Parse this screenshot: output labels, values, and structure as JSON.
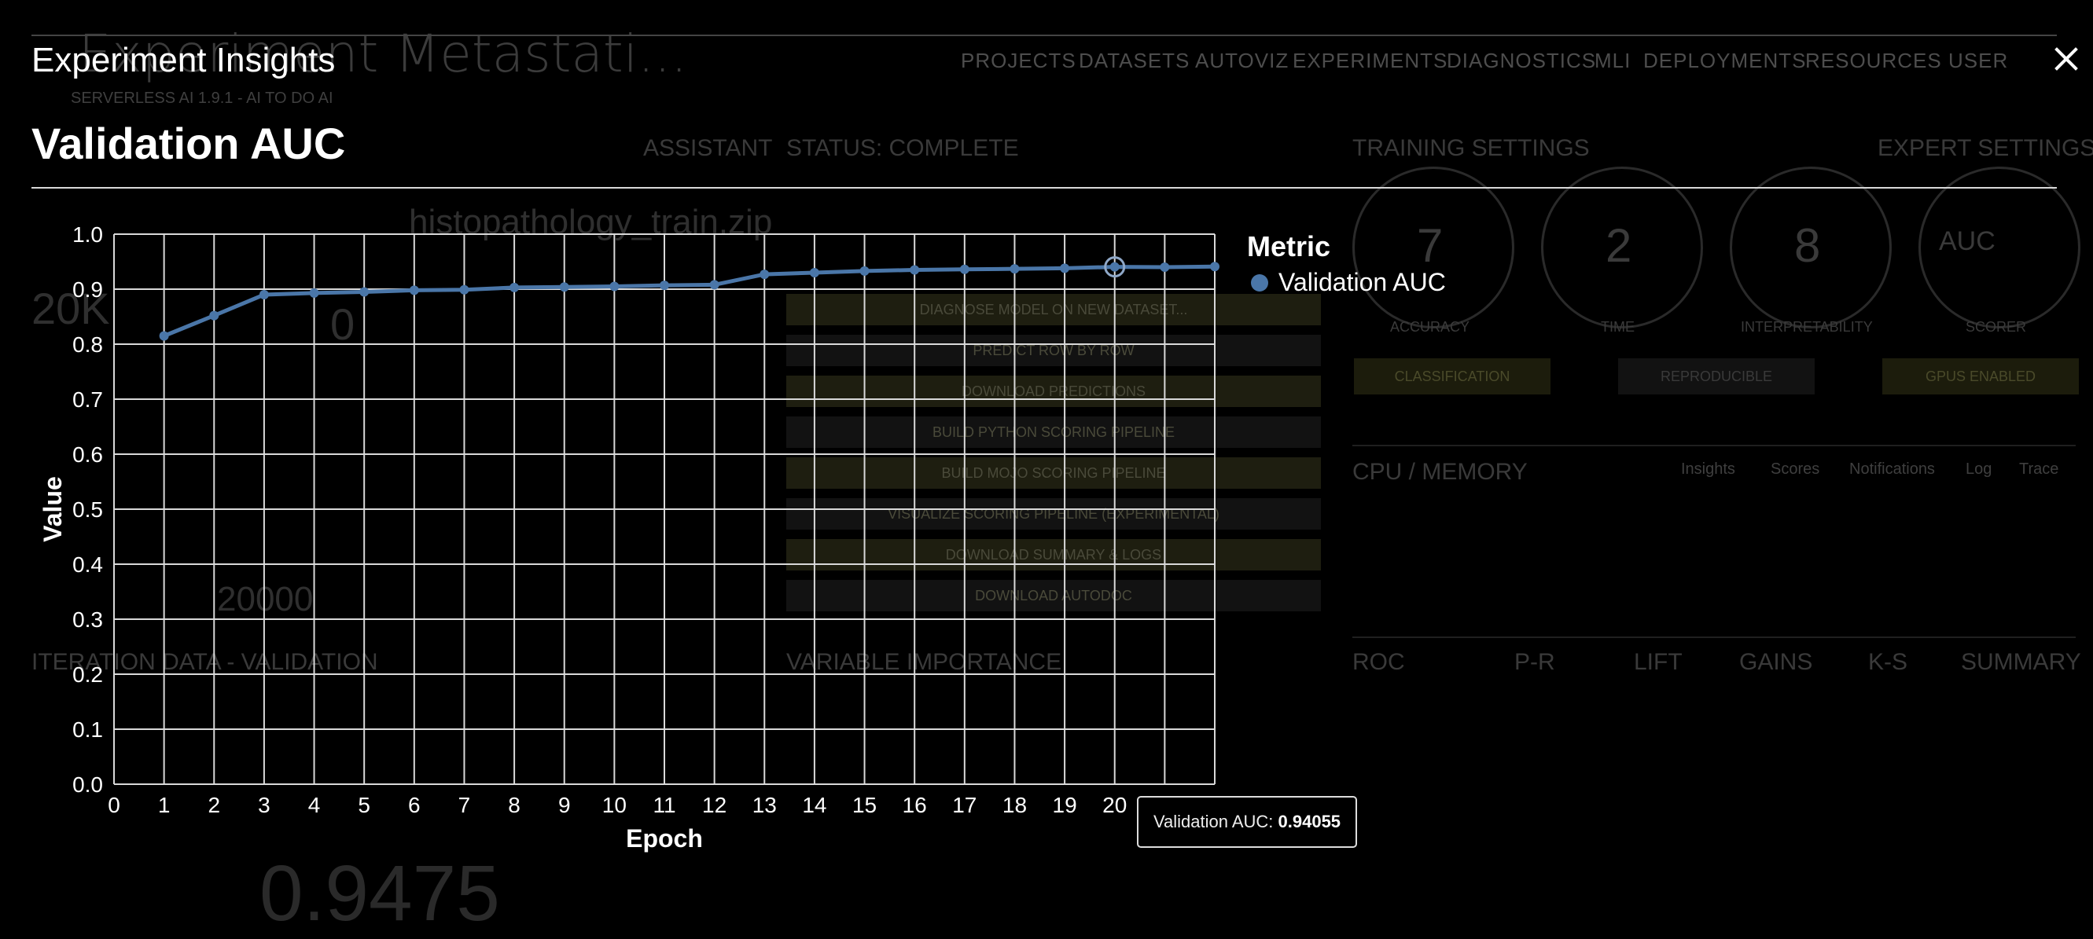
{
  "modal": {
    "title": "Experiment Insights",
    "chart_title": "Validation AUC",
    "tooltip": {
      "label": "Validation AUC:",
      "value": "0.94055"
    }
  },
  "background": {
    "app_title": "Experiment Metastati...",
    "nav": [
      "PROJECTS",
      "DATASETS",
      "AUTOVIZ",
      "EXPERIMENTS",
      "DIAGNOSTICS",
      "MLI",
      "DEPLOYMENTS",
      "RESOURCES",
      "USER"
    ],
    "assistant": "ASSISTANT",
    "status": "STATUS: COMPLETE",
    "training_settings": "TRAINING SETTINGS",
    "expert_settings": "EXPERT SETTINGS",
    "dials": [
      {
        "value": "7",
        "label": "ACCURACY"
      },
      {
        "value": "2",
        "label": "TIME"
      },
      {
        "value": "8",
        "label": "INTERPRETABILITY"
      },
      {
        "value": "AUC",
        "label": "SCORER"
      }
    ],
    "badges": [
      "CLASSIFICATION",
      "REPRODUCIBLE",
      "GPUS ENABLED"
    ],
    "cpu_memory": "CPU / MEMORY",
    "cpu_tabs": [
      "Insights",
      "Scores",
      "Notifications",
      "Log",
      "Trace"
    ],
    "roc_tabs": [
      "ROC",
      "P-R",
      "LIFT",
      "GAINS",
      "K-S",
      "SUMMARY"
    ],
    "variable_importance": "VARIABLE IMPORTANCE",
    "iteration_data": "ITERATION DATA - VALIDATION",
    "action_buttons": [
      "DIAGNOSE MODEL ON NEW DATASET...",
      "PREDICT ROW BY ROW",
      "DOWNLOAD PREDICTIONS",
      "BUILD PYTHON SCORING PIPELINE",
      "BUILD MOJO SCORING PIPELINE",
      "VISUALIZE SCORING PIPELINE (EXPERIMENTAL)",
      "DOWNLOAD SUMMARY & LOGS",
      "DOWNLOAD AUTODOC"
    ],
    "left_fields": [
      "20K",
      "0",
      "20000",
      "0.9475"
    ],
    "dataset_name": "histopathology_train.zip",
    "subtitle": "SERVERLESS AI 1.9.1 - AI TO DO AI"
  },
  "chart_data": {
    "type": "line",
    "title": "Validation AUC",
    "xlabel": "Epoch",
    "ylabel": "Value",
    "legend_title": "Metric",
    "legend_position": "top-right",
    "grid": true,
    "xlim": [
      0,
      22
    ],
    "ylim": [
      0.0,
      1.0
    ],
    "x_ticks": [
      0,
      1,
      2,
      3,
      4,
      5,
      6,
      7,
      8,
      9,
      10,
      11,
      12,
      13,
      14,
      15,
      16,
      17,
      18,
      19,
      20,
      21,
      22
    ],
    "y_ticks": [
      "0.0",
      "0.1",
      "0.2",
      "0.3",
      "0.4",
      "0.5",
      "0.6",
      "0.7",
      "0.8",
      "0.9",
      "1.0"
    ],
    "series": [
      {
        "name": "Validation AUC",
        "color": "#4a76a8",
        "x": [
          1,
          2,
          3,
          4,
          5,
          6,
          7,
          8,
          9,
          10,
          11,
          12,
          13,
          14,
          15,
          16,
          17,
          18,
          19,
          20,
          21,
          22
        ],
        "values": [
          0.815,
          0.852,
          0.89,
          0.893,
          0.895,
          0.898,
          0.899,
          0.903,
          0.904,
          0.905,
          0.907,
          0.908,
          0.927,
          0.93,
          0.933,
          0.935,
          0.936,
          0.937,
          0.938,
          0.94055,
          0.94,
          0.941
        ]
      }
    ],
    "highlight": {
      "x": 20,
      "value": 0.94055
    }
  }
}
